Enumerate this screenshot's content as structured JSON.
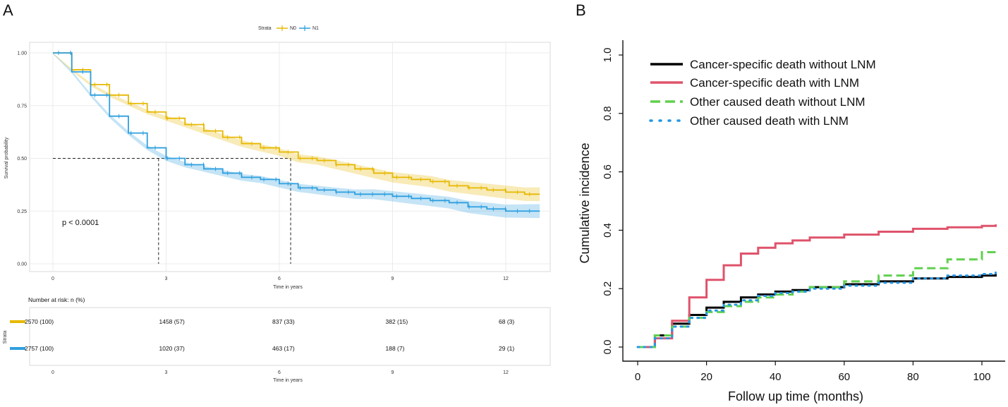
{
  "chart_data": [
    {
      "panel": "A",
      "type": "line",
      "subtype": "kaplan-meier",
      "legend_title": "Strata",
      "xlabel": "Time in years",
      "ylabel": "Survival probability",
      "xlim": [
        0,
        13
      ],
      "ylim": [
        0,
        1
      ],
      "x_ticks": [
        0,
        3,
        6,
        9,
        12
      ],
      "y_ticks": [
        0,
        0.25,
        0.5,
        0.75,
        1.0
      ],
      "y_tick_labels": [
        "0.00",
        "0.25",
        "0.50",
        "0.75",
        "1.00"
      ],
      "pvalue_text": "p < 0.0001",
      "median_reference": {
        "y": 0.5,
        "x_N1": 2.8,
        "x_N0": 6.3
      },
      "series": [
        {
          "name": "N0",
          "color": "#E7B800",
          "x": [
            0,
            0.5,
            1,
            1.5,
            2,
            2.5,
            3,
            3.5,
            4,
            4.5,
            5,
            5.5,
            6,
            6.5,
            7,
            7.5,
            8,
            8.5,
            9,
            9.5,
            10,
            10.5,
            11,
            11.5,
            12,
            12.5,
            12.9
          ],
          "y": [
            1.0,
            0.92,
            0.85,
            0.8,
            0.76,
            0.72,
            0.69,
            0.66,
            0.63,
            0.6,
            0.57,
            0.55,
            0.53,
            0.5,
            0.49,
            0.47,
            0.45,
            0.43,
            0.41,
            0.4,
            0.39,
            0.37,
            0.36,
            0.35,
            0.34,
            0.33,
            0.33
          ]
        },
        {
          "name": "N1",
          "color": "#2E9FDF",
          "x": [
            0,
            0.5,
            1,
            1.5,
            2,
            2.5,
            3,
            3.5,
            4,
            4.5,
            5,
            5.5,
            6,
            6.5,
            7,
            7.5,
            8,
            8.5,
            9,
            9.5,
            10,
            10.5,
            11,
            11.5,
            12,
            12.5,
            12.9
          ],
          "y": [
            1.0,
            0.91,
            0.8,
            0.7,
            0.62,
            0.55,
            0.5,
            0.47,
            0.45,
            0.43,
            0.41,
            0.4,
            0.38,
            0.36,
            0.35,
            0.34,
            0.33,
            0.33,
            0.32,
            0.31,
            0.3,
            0.29,
            0.27,
            0.26,
            0.25,
            0.25,
            0.25
          ]
        }
      ],
      "risk_table": {
        "title": "Number at risk: n (%)",
        "strata_label": "Strata",
        "xlabel": "Time in years",
        "times": [
          0,
          3,
          6,
          9,
          12
        ],
        "rows": [
          {
            "name": "N0",
            "color": "#E7B800",
            "values": [
              "2570 (100)",
              "1458 (57)",
              "837 (33)",
              "382 (15)",
              "68 (3)"
            ]
          },
          {
            "name": "N1",
            "color": "#2E9FDF",
            "values": [
              "2757 (100)",
              "1020 (37)",
              "463 (17)",
              "188 (7)",
              "29 (1)"
            ]
          }
        ]
      }
    },
    {
      "panel": "B",
      "type": "line",
      "subtype": "cumulative-incidence",
      "xlabel": "Follow up time (months)",
      "ylabel": "Cumulative incidence",
      "xlim": [
        0,
        104
      ],
      "ylim": [
        0,
        1
      ],
      "x_ticks": [
        0,
        20,
        40,
        60,
        80,
        100
      ],
      "y_ticks": [
        0.0,
        0.2,
        0.4,
        0.6,
        0.8,
        1.0
      ],
      "y_tick_labels": [
        "0.0",
        "0.2",
        "0.4",
        "0.6",
        "0.8",
        "1.0"
      ],
      "series": [
        {
          "name": "Cancer-specific death without LNM",
          "color": "#000000",
          "dash": "solid",
          "x": [
            0,
            5,
            10,
            15,
            20,
            25,
            30,
            35,
            40,
            45,
            50,
            60,
            70,
            80,
            90,
            100,
            104
          ],
          "y": [
            0,
            0.04,
            0.08,
            0.11,
            0.135,
            0.155,
            0.17,
            0.18,
            0.19,
            0.195,
            0.205,
            0.215,
            0.225,
            0.235,
            0.24,
            0.245,
            0.25
          ]
        },
        {
          "name": "Cancer-specific death with LNM",
          "color": "#DF536B",
          "dash": "solid",
          "x": [
            0,
            5,
            10,
            15,
            20,
            25,
            30,
            35,
            40,
            45,
            50,
            60,
            70,
            80,
            90,
            100,
            104
          ],
          "y": [
            0,
            0.03,
            0.09,
            0.17,
            0.23,
            0.28,
            0.32,
            0.34,
            0.355,
            0.365,
            0.375,
            0.385,
            0.395,
            0.405,
            0.41,
            0.415,
            0.42
          ]
        },
        {
          "name": "Other caused death without LNM",
          "color": "#61D04F",
          "dash": "dashed",
          "x": [
            0,
            5,
            10,
            15,
            20,
            25,
            30,
            35,
            40,
            45,
            50,
            60,
            70,
            80,
            90,
            100,
            104
          ],
          "y": [
            0,
            0.04,
            0.07,
            0.1,
            0.12,
            0.14,
            0.155,
            0.17,
            0.18,
            0.19,
            0.205,
            0.225,
            0.245,
            0.27,
            0.3,
            0.325,
            0.335
          ]
        },
        {
          "name": "Other caused death with LNM",
          "color": "#2297E6",
          "dash": "dotted",
          "x": [
            0,
            5,
            10,
            15,
            20,
            25,
            30,
            35,
            40,
            45,
            50,
            60,
            70,
            80,
            90,
            100,
            104
          ],
          "y": [
            0,
            0.03,
            0.07,
            0.1,
            0.125,
            0.145,
            0.16,
            0.175,
            0.185,
            0.19,
            0.2,
            0.21,
            0.22,
            0.235,
            0.245,
            0.25,
            0.255
          ]
        }
      ]
    }
  ]
}
